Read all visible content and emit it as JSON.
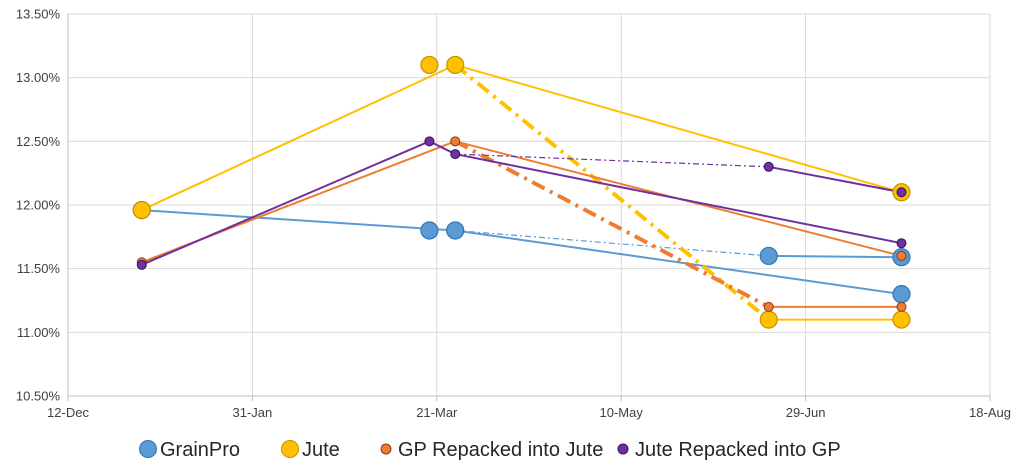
{
  "chart_data": {
    "type": "line",
    "title": "",
    "xlabel": "",
    "ylabel": "",
    "x_range": [
      "2019-12-12",
      "2020-08-18"
    ],
    "x_ticks": [
      "12-Dec",
      "31-Jan",
      "21-Mar",
      "10-May",
      "29-Jun",
      "18-Aug"
    ],
    "ylim": [
      0.105,
      0.135
    ],
    "y_ticks": [
      "10.50%",
      "11.00%",
      "11.50%",
      "12.00%",
      "12.50%",
      "13.00%",
      "13.50%"
    ],
    "grid": true,
    "legend_position": "bottom",
    "series": [
      {
        "name": "GrainPro",
        "color": "#5B9BD5",
        "stroke": "#2E75B6",
        "marker_size": "large",
        "points": [
          [
            "2020-01-01",
            0.1196
          ],
          [
            "2020-03-19",
            0.118
          ],
          [
            "2020-03-26",
            0.118
          ],
          [
            "2020-06-19",
            0.116
          ],
          [
            "2020-07-25",
            0.113
          ],
          [
            "2020-07-25",
            0.1159
          ]
        ],
        "solid_segments": [
          [
            0,
            2
          ],
          [
            2,
            4
          ],
          [
            3,
            5
          ]
        ],
        "dashed_segments": [
          [
            2,
            3
          ]
        ]
      },
      {
        "name": "Jute",
        "color": "#FFC000",
        "stroke": "#C49300",
        "marker_size": "large",
        "points": [
          [
            "2020-01-01",
            0.1196
          ],
          [
            "2020-03-19",
            0.131
          ],
          [
            "2020-03-26",
            0.131
          ],
          [
            "2020-06-19",
            0.111
          ],
          [
            "2020-07-25",
            0.111
          ],
          [
            "2020-07-25",
            0.121
          ]
        ],
        "solid_segments": [
          [
            0,
            2
          ],
          [
            2,
            5
          ],
          [
            3,
            4
          ]
        ],
        "dashed_segments": [
          [
            2,
            3
          ]
        ]
      },
      {
        "name": "GP Repacked into Jute",
        "color": "#ED7D31",
        "stroke": "#8B3A0F",
        "marker_size": "small",
        "points": [
          [
            "2020-01-01",
            0.1155
          ],
          [
            "2020-03-26",
            0.125
          ],
          [
            "2020-06-19",
            0.112
          ],
          [
            "2020-07-25",
            0.112
          ],
          [
            "2020-07-25",
            0.116
          ]
        ],
        "solid_segments": [
          [
            0,
            1
          ],
          [
            1,
            4
          ],
          [
            2,
            3
          ]
        ],
        "dashed_segments": [
          [
            1,
            2
          ]
        ]
      },
      {
        "name": "Jute Repacked into GP",
        "color": "#7030A0",
        "stroke": "#3A0F5C",
        "marker_size": "small",
        "points": [
          [
            "2020-01-01",
            0.1153
          ],
          [
            "2020-03-19",
            0.125
          ],
          [
            "2020-03-26",
            0.124
          ],
          [
            "2020-06-19",
            0.123
          ],
          [
            "2020-07-25",
            0.117
          ],
          [
            "2020-07-25",
            0.121
          ]
        ],
        "solid_segments": [
          [
            0,
            1
          ],
          [
            1,
            2
          ],
          [
            2,
            4
          ],
          [
            3,
            5
          ]
        ],
        "dashed_segments": [
          [
            2,
            3
          ]
        ]
      }
    ]
  }
}
